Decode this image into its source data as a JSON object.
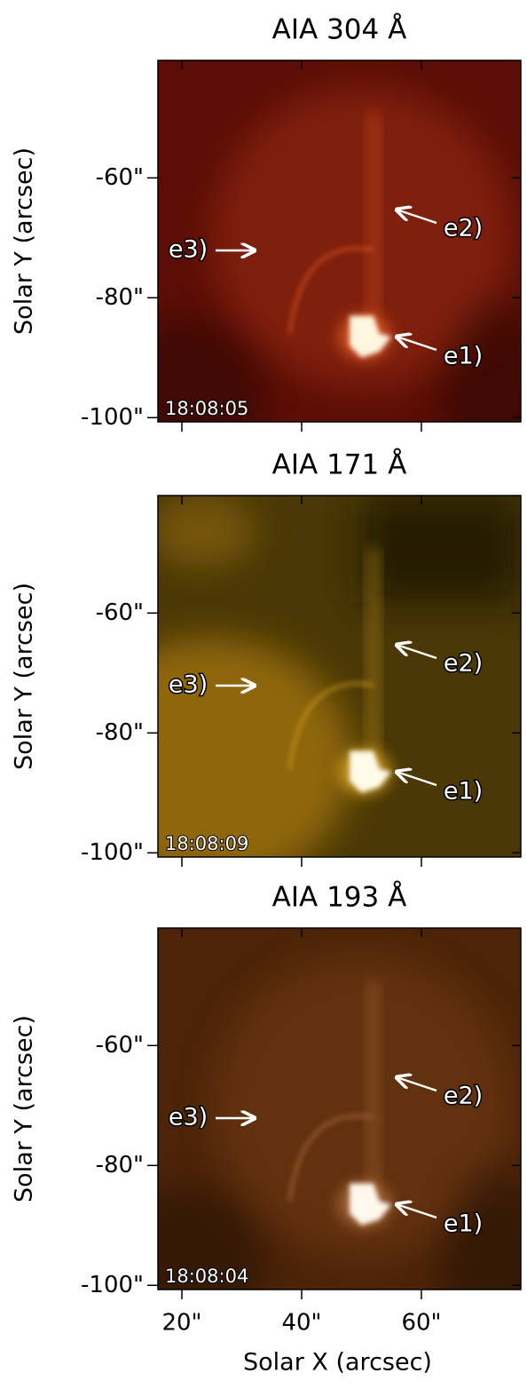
{
  "chart_data": [
    {
      "type": "image",
      "title": "AIA 304 Å",
      "timestamp": "18:08:05",
      "ylabel": "Solar Y (arcsec)",
      "xlim": [
        16,
        76.6
      ],
      "ylim": [
        -100.7,
        -40.4
      ],
      "xticks": [
        {
          "value": 20,
          "label": "20\""
        },
        {
          "value": 40,
          "label": "40\""
        },
        {
          "value": 60,
          "label": "60\""
        }
      ],
      "yticks": [
        {
          "value": -60,
          "label": "-60\""
        },
        {
          "value": -80,
          "label": "-80\""
        },
        {
          "value": -100,
          "label": "-100\""
        }
      ],
      "annotations": [
        "e1)",
        "e2)",
        "e3)"
      ],
      "color": "#5c0e06"
    },
    {
      "type": "image",
      "title": "AIA 171 Å",
      "timestamp": "18:08:09",
      "ylabel": "Solar Y (arcsec)",
      "xlim": [
        16,
        76.6
      ],
      "ylim": [
        -100.7,
        -40.4
      ],
      "xticks": [
        {
          "value": 20,
          "label": "20\""
        },
        {
          "value": 40,
          "label": "40\""
        },
        {
          "value": 60,
          "label": "60\""
        }
      ],
      "yticks": [
        {
          "value": -60,
          "label": "-60\""
        },
        {
          "value": -80,
          "label": "-80\""
        },
        {
          "value": -100,
          "label": "-100\""
        }
      ],
      "annotations": [
        "e1)",
        "e2)",
        "e3)"
      ],
      "color": "#4a3806"
    },
    {
      "type": "image",
      "title": "AIA 193 Å",
      "timestamp": "18:08:04",
      "ylabel": "Solar Y (arcsec)",
      "xlabel": "Solar X (arcsec)",
      "xlim": [
        16,
        76.6
      ],
      "ylim": [
        -100.7,
        -40.4
      ],
      "xticks": [
        {
          "value": 20,
          "label": "20\""
        },
        {
          "value": 40,
          "label": "40\""
        },
        {
          "value": 60,
          "label": "60\""
        }
      ],
      "yticks": [
        {
          "value": -60,
          "label": "-60\""
        },
        {
          "value": -80,
          "label": "-80\""
        },
        {
          "value": -100,
          "label": "-100\""
        }
      ],
      "annotations": [
        "e1)",
        "e2)",
        "e3)"
      ],
      "color": "#4d2408"
    }
  ]
}
